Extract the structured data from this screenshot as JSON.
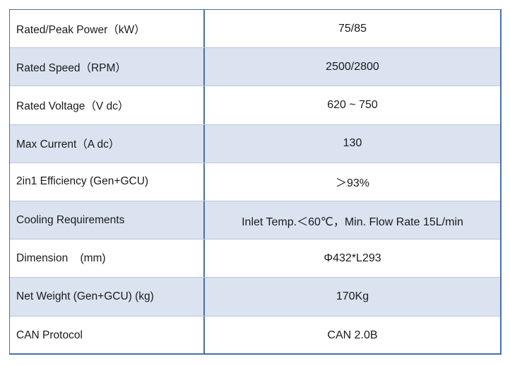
{
  "spec_table": {
    "rows": [
      {
        "label": "Rated/Peak Power（kW）",
        "value": "75/85"
      },
      {
        "label": "Rated Speed（RPM）",
        "value": "2500/2800"
      },
      {
        "label": "Rated Voltage（V dc）",
        "value": "620 ~ 750"
      },
      {
        "label": "Max Current（A dc）",
        "value": "130"
      },
      {
        "label": "2in1 Efficiency (Gen+GCU)",
        "value": "＞93%"
      },
      {
        "label": "Cooling Requirements",
        "value": "Inlet Temp.＜60℃，Min. Flow Rate 15L/min"
      },
      {
        "label": "Dimension    (mm)",
        "value": "Φ432*L293"
      },
      {
        "label": "Net Weight (Gen+GCU) (kg)",
        "value": "170Kg"
      },
      {
        "label": "CAN Protocol",
        "value": "CAN 2.0B"
      }
    ]
  }
}
